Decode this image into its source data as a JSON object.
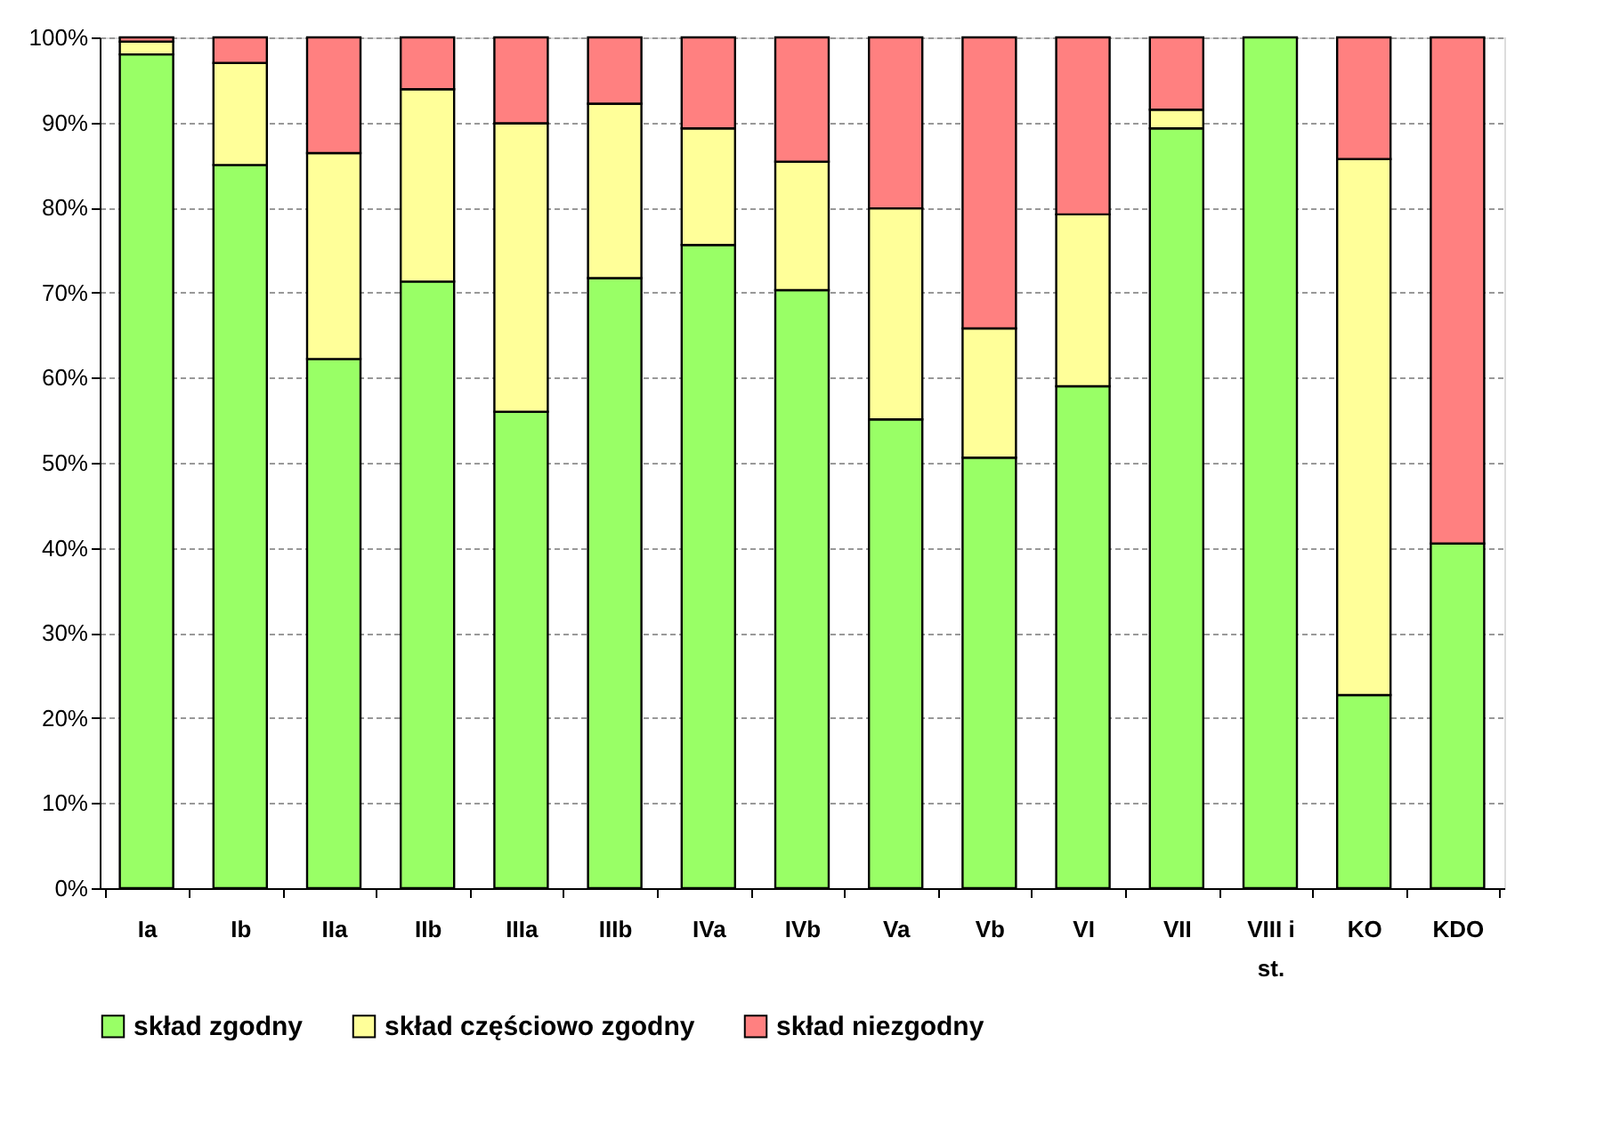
{
  "chart_data": {
    "type": "bar",
    "stacked": true,
    "categories": [
      "Ia",
      "Ib",
      "IIa",
      "IIb",
      "IIIa",
      "IIIb",
      "IVa",
      "IVb",
      "Va",
      "Vb",
      "VI",
      "VII",
      "VIII i st.",
      "KO",
      "KDO"
    ],
    "series": [
      {
        "name": "skład zgodny",
        "color": "#99ff66",
        "values": [
          98,
          85,
          62.2,
          71.3,
          56,
          71.7,
          75.6,
          70.3,
          55.1,
          50.6,
          59,
          89.3,
          100,
          22.7,
          40.5
        ]
      },
      {
        "name": "skład częściowo zgodny",
        "color": "#ffff99",
        "values": [
          1.5,
          12,
          24.2,
          22.6,
          33.9,
          20.5,
          13.7,
          15.1,
          24.8,
          15.2,
          20.2,
          2.2,
          null,
          63,
          null
        ]
      },
      {
        "name": "skład niezgodny",
        "color": "#ff8080",
        "values": [
          0.5,
          3,
          13.6,
          6.1,
          10.1,
          7.8,
          10.7,
          14.6,
          20.1,
          34.2,
          20.8,
          8.5,
          null,
          14.3,
          59.5
        ]
      }
    ],
    "ylim": [
      0,
      100
    ],
    "yticks": [
      {
        "value": 0,
        "label": "0%"
      },
      {
        "value": 10,
        "label": "10%"
      },
      {
        "value": 20,
        "label": "20%"
      },
      {
        "value": 30,
        "label": "30%"
      },
      {
        "value": 40,
        "label": "40%"
      },
      {
        "value": 50,
        "label": "50%"
      },
      {
        "value": 60,
        "label": "60%"
      },
      {
        "value": 70,
        "label": "70%"
      },
      {
        "value": 80,
        "label": "80%"
      },
      {
        "value": 90,
        "label": "90%"
      },
      {
        "value": 100,
        "label": "100%"
      }
    ],
    "grid": "y",
    "legend": "bottom"
  }
}
